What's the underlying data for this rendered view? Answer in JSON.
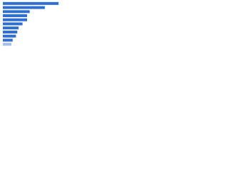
{
  "chart_data": {
    "type": "hbar",
    "categories": [
      null,
      null,
      null,
      null,
      null,
      null,
      null,
      null,
      null,
      null,
      null
    ],
    "values": [
      85,
      64,
      41,
      37,
      37,
      30,
      24,
      22,
      20,
      15,
      13
    ],
    "colors": [
      "#2f6fd1",
      "#2f6fd1",
      "#2f6fd1",
      "#2f6fd1",
      "#2f6fd1",
      "#2f6fd1",
      "#2f6fd1",
      "#2f6fd1",
      "#2f6fd1",
      "#2f6fd1",
      "#a7c0e6"
    ],
    "xlim": [
      0,
      100
    ]
  }
}
